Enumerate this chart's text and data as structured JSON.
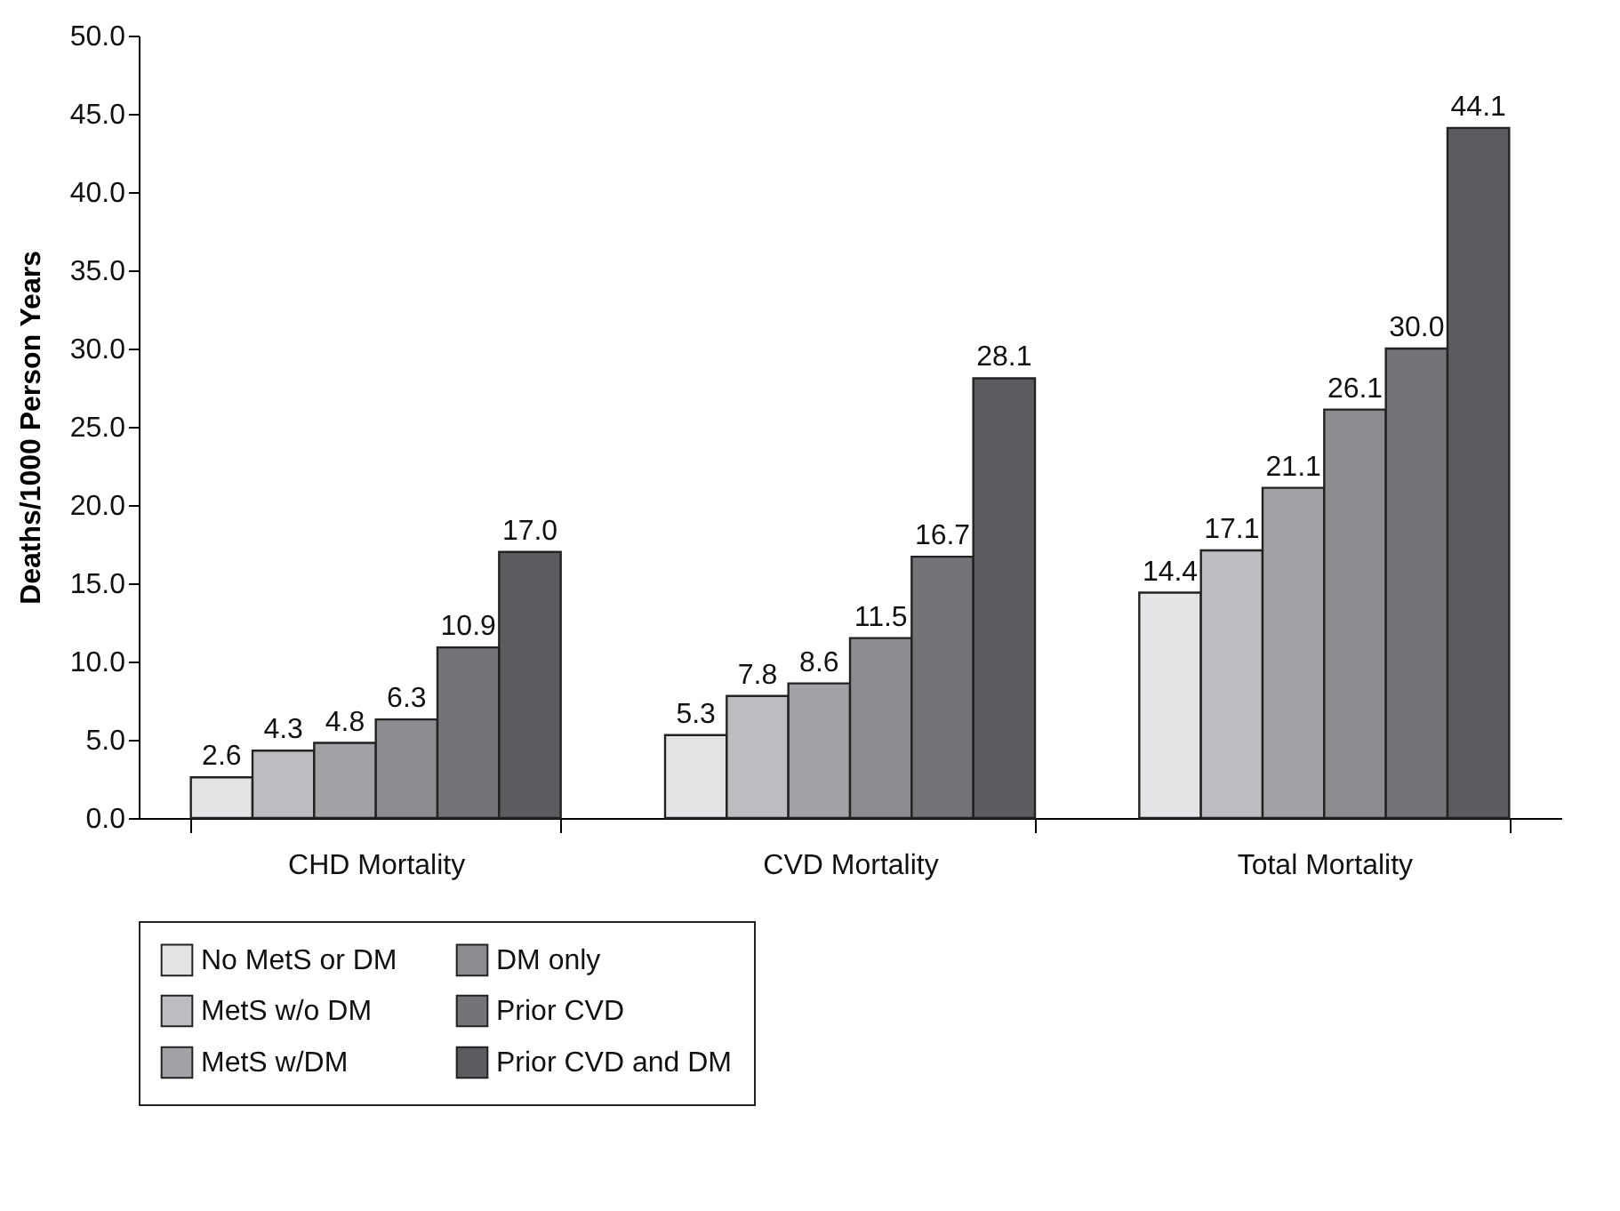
{
  "chart_data": {
    "type": "bar",
    "ylabel": "Deaths/1000 Person Years",
    "categories": [
      "CHD Mortality",
      "CVD Mortality",
      "Total Mortality"
    ],
    "series": [
      {
        "name": "No MetS or DM",
        "color": "#e4e4e6",
        "values": [
          2.6,
          5.3,
          14.4
        ],
        "value_labels": [
          "2.6",
          "5.3",
          "14.4"
        ]
      },
      {
        "name": "MetS w/o DM",
        "color": "#bdbdc1",
        "values": [
          4.3,
          7.8,
          17.1
        ],
        "value_labels": [
          "4.3",
          "7.8",
          "17.1"
        ]
      },
      {
        "name": "MetS w/DM",
        "color": "#a2a2a6",
        "values": [
          4.8,
          8.6,
          21.1
        ],
        "value_labels": [
          "4.8",
          "8.6",
          "21.1"
        ]
      },
      {
        "name": "DM only",
        "color": "#8c8c90",
        "values": [
          6.3,
          11.5,
          26.1
        ],
        "value_labels": [
          "6.3",
          "11.5",
          "26.1"
        ]
      },
      {
        "name": "Prior CVD",
        "color": "#747478",
        "values": [
          10.9,
          16.7,
          30.0
        ],
        "value_labels": [
          "10.9",
          "16.7",
          "30.0"
        ]
      },
      {
        "name": "Prior CVD and DM",
        "color": "#5c5c60",
        "values": [
          17.0,
          28.1,
          44.1
        ],
        "value_labels": [
          "17.0",
          "28.1",
          "44.1"
        ]
      }
    ],
    "ylim": [
      0,
      50
    ],
    "yticks": [
      {
        "value": 0,
        "label": "0.0"
      },
      {
        "value": 5,
        "label": "5.0"
      },
      {
        "value": 10,
        "label": "10.0"
      },
      {
        "value": 15,
        "label": "15.0"
      },
      {
        "value": 20,
        "label": "20.0"
      },
      {
        "value": 25,
        "label": "25.0"
      },
      {
        "value": 30,
        "label": "30.0"
      },
      {
        "value": 35,
        "label": "35.0"
      },
      {
        "value": 40,
        "label": "40.0"
      },
      {
        "value": 45,
        "label": "45.0"
      },
      {
        "value": 50,
        "label": "50.0"
      }
    ],
    "grid": false,
    "legend": "bottom"
  }
}
